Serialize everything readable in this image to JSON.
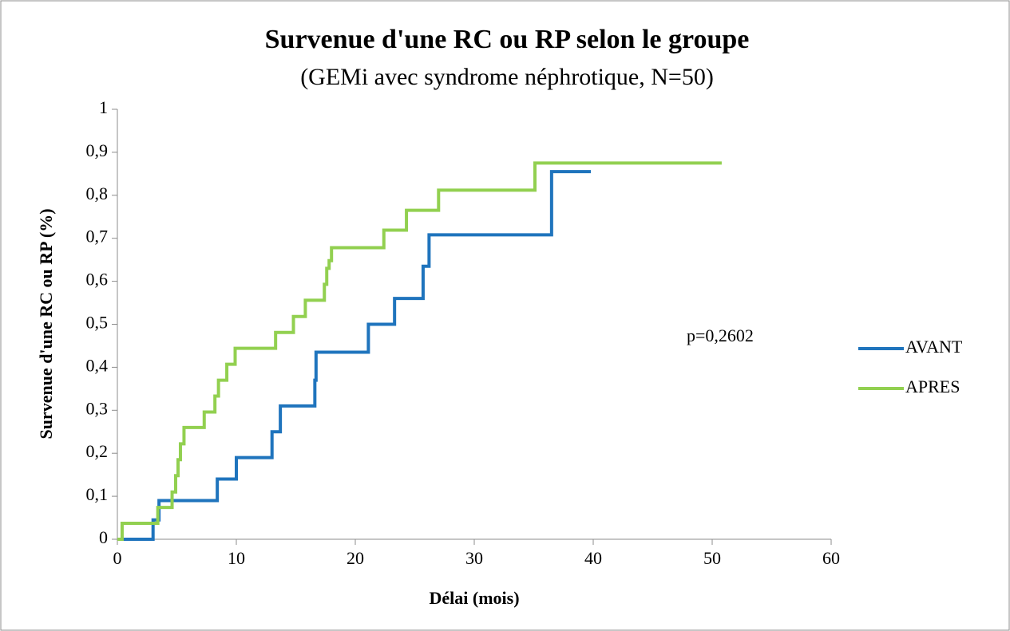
{
  "chart_data": {
    "type": "line",
    "step": "post",
    "title": "Survenue d'une RC ou RP selon le groupe",
    "subtitle": "(GEMi avec syndrome néphrotique, N=50)",
    "x_label": "Délai (mois)",
    "y_label": "Survenue d'une RC ou RP (%)",
    "annotation": "p=0,2602",
    "xlim": [
      0,
      60
    ],
    "xticks": [
      0,
      10,
      20,
      30,
      40,
      50,
      60
    ],
    "ylim": [
      0,
      1
    ],
    "yticks": [
      0,
      {
        "value": 0.1,
        "label": "0,1"
      },
      {
        "value": 0.2,
        "label": "0,2"
      },
      {
        "value": 0.3,
        "label": "0,3"
      },
      {
        "value": 0.4,
        "label": "0,4"
      },
      {
        "value": 0.5,
        "label": "0,5"
      },
      {
        "value": 0.6,
        "label": "0,6"
      },
      {
        "value": 0.7,
        "label": "0,7"
      },
      {
        "value": 0.8,
        "label": "0,8"
      },
      {
        "value": 0.9,
        "label": "0,9"
      },
      1
    ],
    "legend": "right",
    "series": [
      {
        "name": "AVANT",
        "color": "#1f74bd",
        "x": [
          0.3,
          3,
          3.5,
          8.4,
          10,
          13,
          13.7,
          16.6,
          16.7,
          21.1,
          23.3,
          25.7,
          26.2,
          36.5,
          39.8
        ],
        "values": [
          0,
          0.045,
          0.09,
          0.14,
          0.19,
          0.25,
          0.31,
          0.37,
          0.435,
          0.5,
          0.56,
          0.635,
          0.708,
          0.855,
          0.855
        ]
      },
      {
        "name": "APRES",
        "color": "#92d050",
        "x": [
          0,
          0.4,
          3.4,
          4.6,
          4.9,
          5.1,
          5.3,
          5.6,
          7.3,
          8.2,
          8.5,
          9.2,
          9.9,
          13.3,
          14.8,
          15.8,
          17.4,
          17.6,
          17.8,
          18,
          22.4,
          24.3,
          27,
          35.1,
          50.8
        ],
        "values": [
          0,
          0.037,
          0.074,
          0.11,
          0.148,
          0.185,
          0.222,
          0.26,
          0.296,
          0.333,
          0.37,
          0.407,
          0.444,
          0.481,
          0.518,
          0.556,
          0.593,
          0.63,
          0.648,
          0.678,
          0.719,
          0.765,
          0.812,
          0.875,
          0.875
        ]
      }
    ]
  }
}
